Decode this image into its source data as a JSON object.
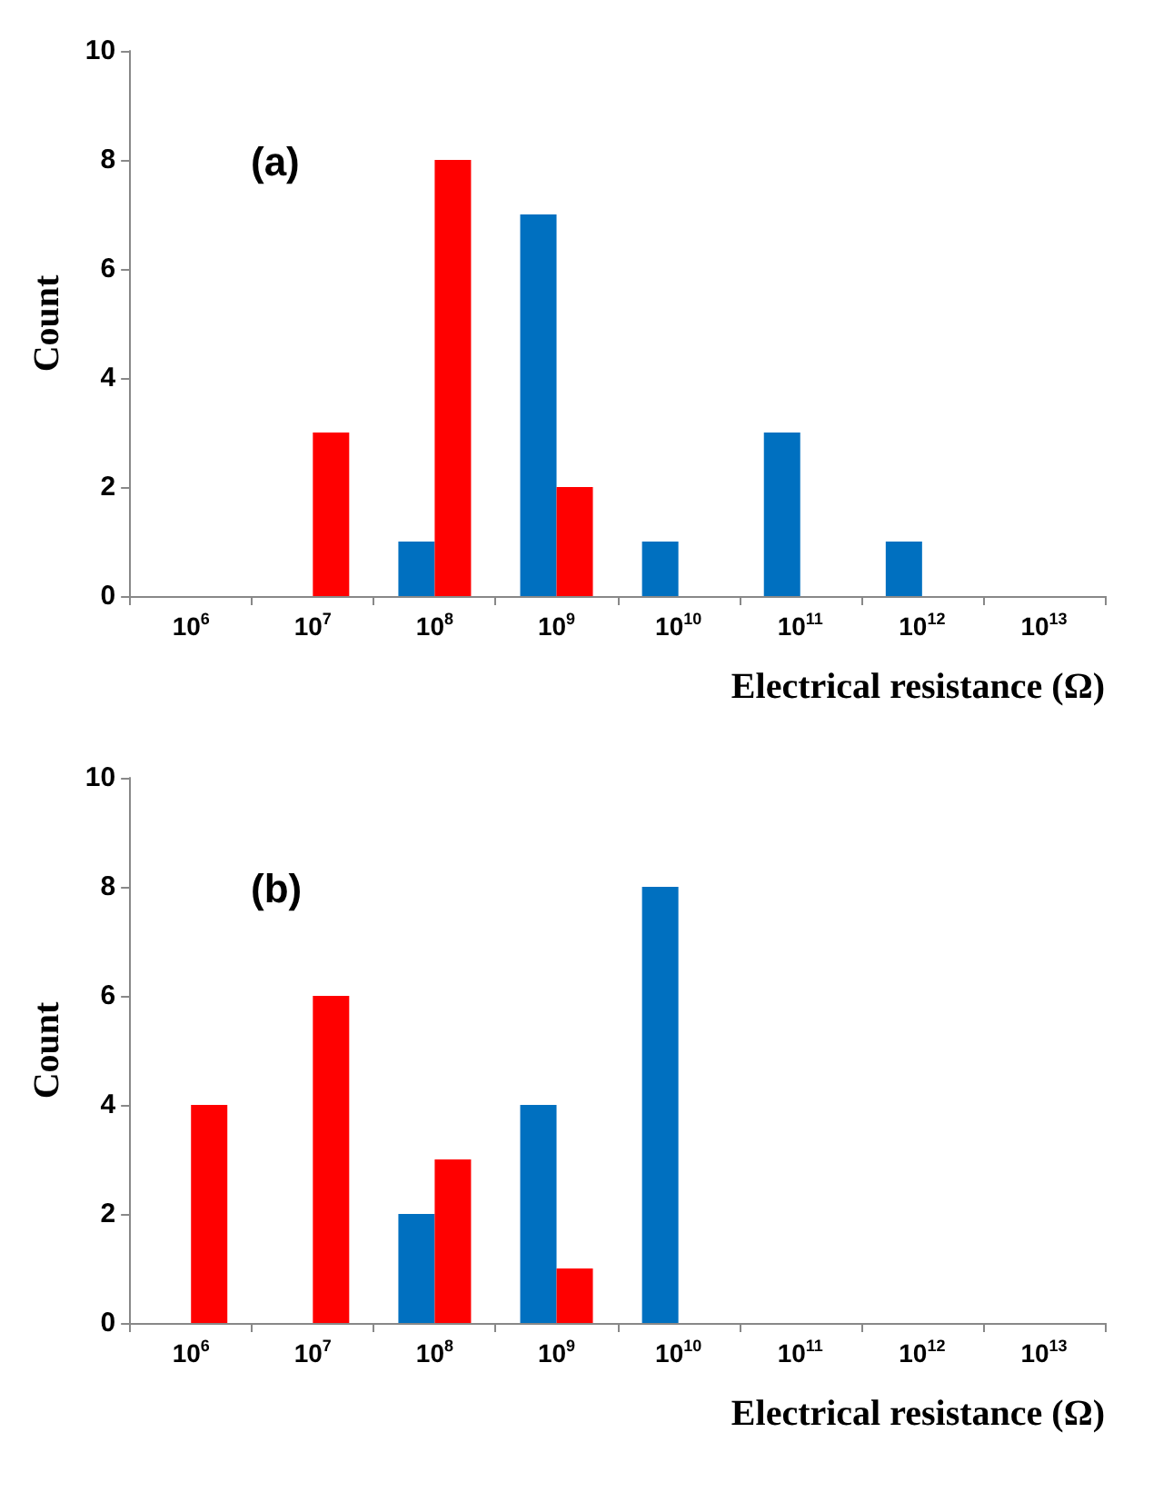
{
  "chart_data": [
    {
      "type": "bar",
      "annotations": [
        "(a)"
      ],
      "xlabel": "Electrical resistance (Ω)",
      "ylabel": "Count",
      "categories": [
        "10$^{6}$",
        "10$^{7}$",
        "10$^{8}$",
        "10$^{9}$",
        "10$^{10}$",
        "10$^{11}$",
        "10$^{12}$",
        "10$^{13}$"
      ],
      "series": [
        {
          "color": "#0070c0",
          "values": [
            0,
            0,
            1,
            7,
            1,
            3,
            1,
            0
          ]
        },
        {
          "color": "#ff0000",
          "values": [
            0,
            3,
            8,
            2,
            0,
            0,
            0,
            0
          ]
        }
      ],
      "ylim": [
        0,
        10
      ],
      "yticks": [
        0,
        2,
        4,
        6,
        8,
        10
      ],
      "grid": false
    },
    {
      "type": "bar",
      "annotations": [
        "(b)"
      ],
      "xlabel": "Electrical resistance (Ω)",
      "ylabel": "Count",
      "categories": [
        "10$^{6}$",
        "10$^{7}$",
        "10$^{8}$",
        "10$^{9}$",
        "10$^{10}$",
        "10$^{11}$",
        "10$^{12}$",
        "10$^{13}$"
      ],
      "series": [
        {
          "color": "#0070c0",
          "values": [
            0,
            0,
            2,
            4,
            8,
            0,
            0,
            0
          ]
        },
        {
          "color": "#ff0000",
          "values": [
            4,
            6,
            3,
            1,
            0,
            0,
            0,
            0
          ]
        }
      ],
      "ylim": [
        0,
        10
      ],
      "yticks": [
        0,
        2,
        4,
        6,
        8,
        10
      ],
      "grid": false
    }
  ]
}
